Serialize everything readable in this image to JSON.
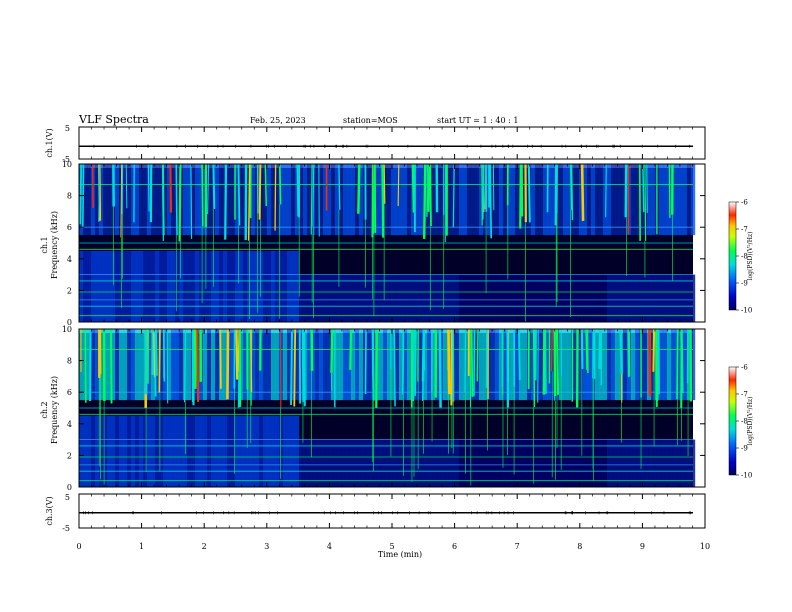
{
  "header": {
    "title": "VLF Spectra",
    "date": "Feb. 25, 2023",
    "station": "station=MOS",
    "start": "start  UT =   1 : 40 : 1"
  },
  "chart_data": {
    "type": "heatmap",
    "x_axis": {
      "label": "Time (min)",
      "range": [
        0,
        10
      ],
      "ticks": [
        "0",
        "1",
        "2",
        "3",
        "4",
        "5",
        "6",
        "7",
        "8",
        "9",
        "10"
      ]
    },
    "panels": [
      {
        "name": "ch1-voltage",
        "ylabel": "ch.1(V)",
        "ylim": [
          -5,
          5
        ],
        "ticks": [
          "5",
          "-5"
        ],
        "level": -1
      },
      {
        "name": "ch1-spectrogram",
        "ylabel_top": "ch.1",
        "ylabel": "Frequency (kHz)",
        "ylim": [
          0,
          10
        ],
        "ticks": [
          "0",
          "2",
          "4",
          "6",
          "8",
          "10"
        ],
        "colorbar": {
          "label": "log(PSD)(V²/Hz)",
          "range": [
            -10,
            -6
          ],
          "ticks": [
            "-6",
            "-7",
            "-8",
            "-9",
            "-10"
          ]
        }
      },
      {
        "name": "ch2-spectrogram",
        "ylabel_top": "ch.2",
        "ylabel": "Frequency (kHz)",
        "ylim": [
          0,
          10
        ],
        "ticks": [
          "0",
          "2",
          "4",
          "6",
          "8",
          "10"
        ],
        "colorbar": {
          "label": "log(PSD)(V²/Hz)",
          "range": [
            -10,
            -6
          ],
          "ticks": [
            "-6",
            "-7",
            "-8",
            "-9",
            "-10"
          ]
        }
      },
      {
        "name": "ch3-voltage",
        "ylabel": "ch.3(V)",
        "ylim": [
          -5,
          5
        ],
        "ticks": [
          "5",
          "-5"
        ],
        "level": -0.5
      }
    ],
    "colormap": [
      "#000060",
      "#0000c8",
      "#0064ff",
      "#00dcdc",
      "#00ff50",
      "#c8ff00",
      "#ffc800",
      "#ff2800",
      "#ffffff"
    ]
  }
}
